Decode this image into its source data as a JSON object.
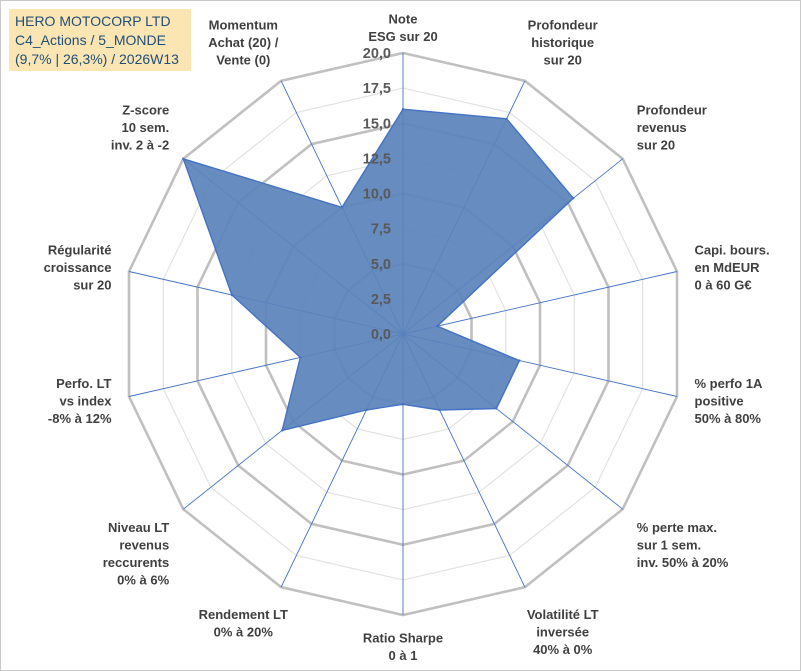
{
  "infobox": {
    "line1": "HERO MOTOCORP LTD",
    "line2": "C4_Actions / 5_MONDE",
    "line3": "(9,7% | 26,3%) / 2026W13"
  },
  "colors": {
    "fill": "#5b83bb",
    "stroke": "#4472c4",
    "grid": "#c0c0c0",
    "spoke": "#4472c4",
    "infobox_bg": "#fbe5b3",
    "infobox_text": "#1f4e79"
  },
  "chart_data": {
    "type": "radar",
    "title": "",
    "rmin": 0,
    "rmax": 20,
    "tick_step": 2.5,
    "tick_labels": [
      "0,0",
      "2,5",
      "5,0",
      "7,5",
      "10,0",
      "12,5",
      "15,0",
      "17,5",
      "20,0"
    ],
    "axes": [
      {
        "label": [
          "Note",
          "ESG sur 20"
        ],
        "value": 16.0
      },
      {
        "label": [
          "Profondeur",
          "historique",
          "sur 20"
        ],
        "value": 17.0
      },
      {
        "label": [
          "Profondeur",
          "revenus",
          "sur 20"
        ],
        "value": 15.5
      },
      {
        "label": [
          "Capi. bours.",
          "en MdEUR",
          "0 à 60 G€"
        ],
        "value": 2.5
      },
      {
        "label": [
          "% perfo 1A",
          "positive",
          "50% à 80%"
        ],
        "value": 8.5
      },
      {
        "label": [
          "% perte max.",
          "sur 1 sem.",
          "inv. 50% à 20%"
        ],
        "value": 8.5
      },
      {
        "label": [
          "Volatilité LT",
          "inversée",
          "40% à 0%"
        ],
        "value": 6.0
      },
      {
        "label": [
          "Ratio Sharpe",
          "0 à 1"
        ],
        "value": 5.0
      },
      {
        "label": [
          "Rendement LT",
          "0% à 20%"
        ],
        "value": 6.0
      },
      {
        "label": [
          "Niveau LT",
          "revenus",
          "reccurents",
          "0% à 6%"
        ],
        "value": 11.0
      },
      {
        "label": [
          "Perfo. LT",
          "vs index",
          "-8% à 12%"
        ],
        "value": 7.5
      },
      {
        "label": [
          "Régularité",
          "croissance",
          "sur 20"
        ],
        "value": 12.5
      },
      {
        "label": [
          "Z-score",
          "10 sem.",
          "inv. 2 à -2"
        ],
        "value": 20.0
      },
      {
        "label": [
          "Momentum",
          "Achat (20) /",
          "Vente (0)"
        ],
        "value": 10.0
      }
    ]
  }
}
